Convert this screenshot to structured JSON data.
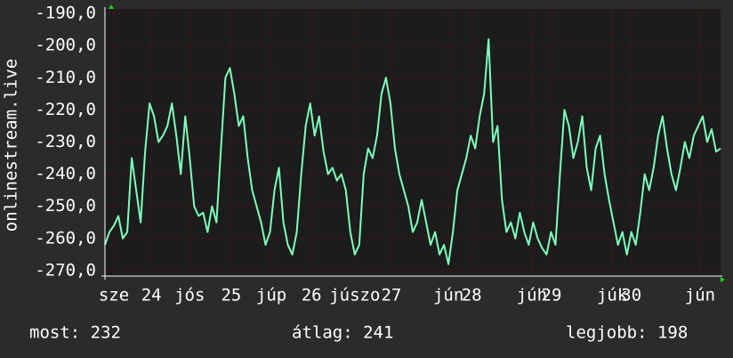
{
  "chart_data": {
    "type": "line",
    "y_label": "onlinestream.live",
    "x": [
      0,
      1,
      2,
      3,
      4,
      5,
      6,
      7,
      8,
      9,
      10,
      11,
      12,
      13,
      14,
      15,
      16,
      17,
      18,
      19,
      20,
      21,
      22,
      23,
      24,
      25,
      26,
      27,
      28,
      29,
      30,
      31,
      32,
      33,
      34,
      35,
      36,
      37,
      38,
      39,
      40,
      41,
      42,
      43,
      44,
      45,
      46,
      47,
      48,
      49,
      50,
      51,
      52,
      53,
      54,
      55,
      56,
      57,
      58,
      59,
      60,
      61,
      62,
      63,
      64,
      65,
      66,
      67,
      68,
      69,
      70,
      71,
      72,
      73,
      74,
      75,
      76,
      77,
      78,
      79,
      80,
      81,
      82,
      83,
      84,
      85,
      86,
      87,
      88,
      89,
      90,
      91,
      92,
      93,
      94,
      95,
      96,
      97,
      98,
      99,
      100,
      101,
      102,
      103,
      104,
      105,
      106,
      107,
      108,
      109,
      110,
      111,
      112,
      113,
      114,
      115,
      116,
      117,
      118,
      119,
      120,
      121,
      122,
      123,
      124,
      125,
      126,
      127,
      128,
      129,
      130,
      131,
      132,
      133,
      134,
      135,
      136,
      137,
      138
    ],
    "values": [
      -262,
      -258,
      -256,
      -253,
      -260,
      -258,
      -235,
      -245,
      -255,
      -233,
      -218,
      -222,
      -230,
      -228,
      -225,
      -218,
      -228,
      -240,
      -222,
      -235,
      -250,
      -253,
      -252,
      -258,
      -250,
      -255,
      -232,
      -210,
      -207,
      -215,
      -225,
      -222,
      -235,
      -245,
      -250,
      -255,
      -262,
      -258,
      -245,
      -238,
      -255,
      -262,
      -265,
      -258,
      -240,
      -225,
      -218,
      -228,
      -222,
      -233,
      -240,
      -238,
      -242,
      -240,
      -245,
      -258,
      -265,
      -262,
      -240,
      -232,
      -235,
      -228,
      -215,
      -210,
      -218,
      -232,
      -240,
      -245,
      -250,
      -258,
      -255,
      -248,
      -255,
      -262,
      -258,
      -265,
      -262,
      -268,
      -258,
      -245,
      -240,
      -235,
      -228,
      -232,
      -222,
      -215,
      -198,
      -230,
      -225,
      -248,
      -258,
      -255,
      -260,
      -252,
      -258,
      -262,
      -255,
      -260,
      -263,
      -265,
      -258,
      -262,
      -240,
      -220,
      -225,
      -235,
      -230,
      -222,
      -238,
      -245,
      -232,
      -228,
      -240,
      -248,
      -255,
      -262,
      -258,
      -265,
      -258,
      -262,
      -252,
      -240,
      -245,
      -238,
      -228,
      -222,
      -232,
      -240,
      -245,
      -238,
      -230,
      -235,
      -228,
      -225,
      -222,
      -230,
      -226,
      -233,
      -232
    ],
    "color": "#7dffbe",
    "xlim": [
      0,
      138
    ],
    "xticks": [
      {
        "value": 2,
        "label": "sze"
      },
      {
        "value": 10.4,
        "label": "24"
      },
      {
        "value": 19,
        "label": "jós"
      },
      {
        "value": 28.3,
        "label": "25"
      },
      {
        "value": 37.3,
        "label": "júp"
      },
      {
        "value": 46.3,
        "label": "26"
      },
      {
        "value": 56,
        "label": "júszo"
      },
      {
        "value": 64.2,
        "label": "27"
      },
      {
        "value": 77,
        "label": "jún"
      },
      {
        "value": 82.2,
        "label": "28"
      },
      {
        "value": 95.7,
        "label": "júh"
      },
      {
        "value": 100.1,
        "label": "29"
      },
      {
        "value": 113.7,
        "label": "júk"
      },
      {
        "value": 118,
        "label": "30"
      },
      {
        "value": 133.4,
        "label": "jún"
      }
    ],
    "ylim": [
      -271.7,
      -188.6
    ],
    "yticks": [
      {
        "value": -190,
        "label": "-190,0"
      },
      {
        "value": -200,
        "label": "-200,0"
      },
      {
        "value": -210,
        "label": "-210,0"
      },
      {
        "value": -220,
        "label": "-220,0"
      },
      {
        "value": -230,
        "label": "-230,0"
      },
      {
        "value": -240,
        "label": "-240,0"
      },
      {
        "value": -250,
        "label": "-250,0"
      },
      {
        "value": -260,
        "label": "-260,0"
      },
      {
        "value": -270,
        "label": "-270,0"
      }
    ],
    "grid": true,
    "footer": [
      "most: 232",
      "átlag: 241",
      "legjobb: 198"
    ]
  }
}
